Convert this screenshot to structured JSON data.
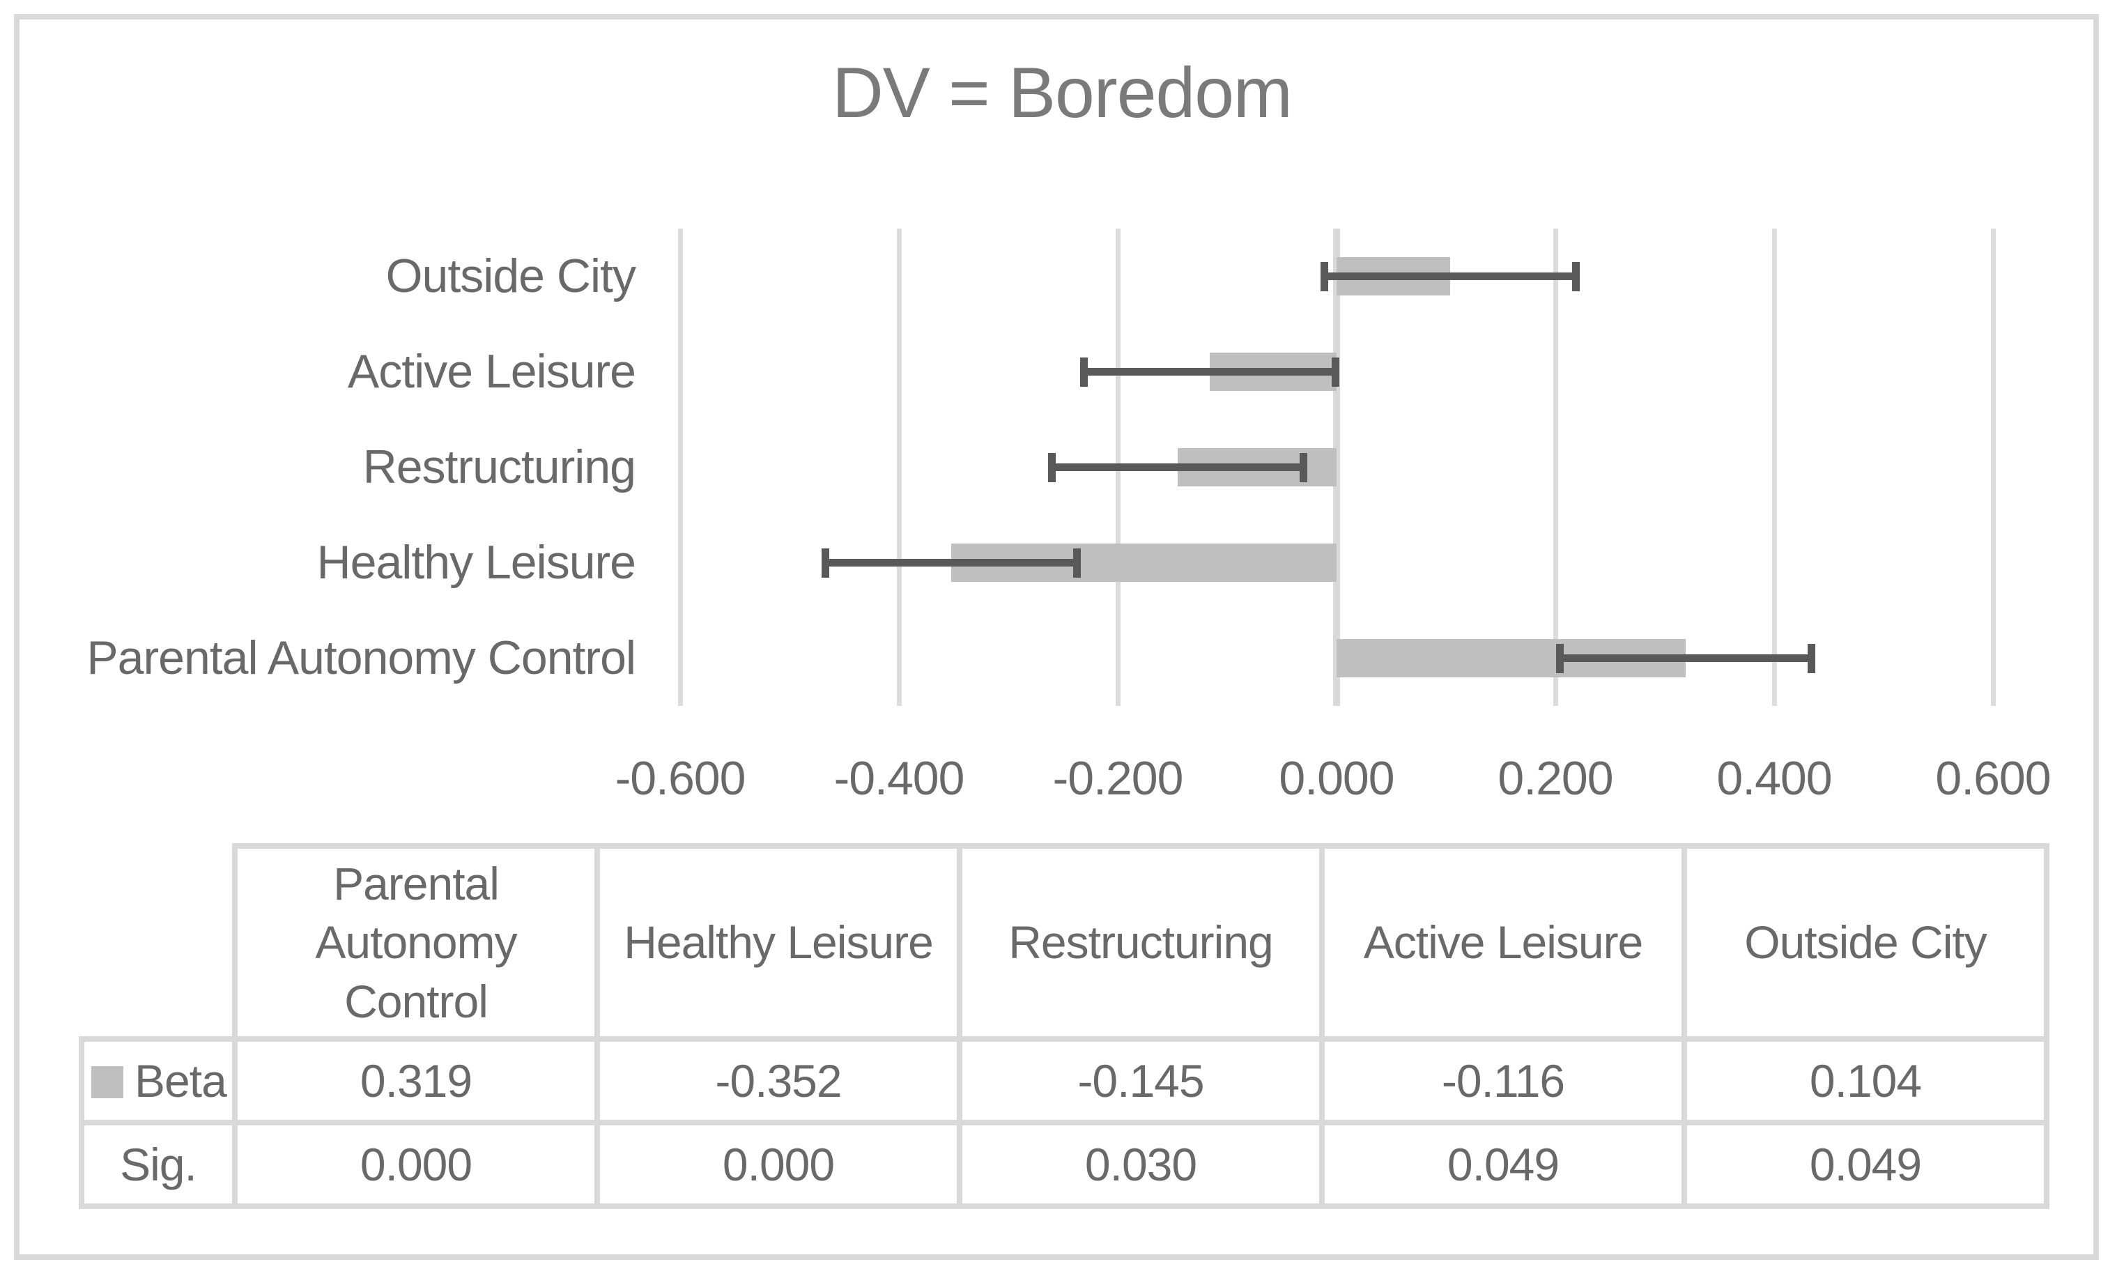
{
  "title": "DV = Boredom",
  "colors": {
    "bar_fill": "#bfbfbf",
    "error_bar": "#595959",
    "gridline": "#dcdcdc",
    "table_border": "#d9d9d9",
    "text": "#696969",
    "title_text": "#7a7a7a",
    "frame_border": "#d9d9d9",
    "background": "#ffffff"
  },
  "chart_data": {
    "type": "bar",
    "orientation": "horizontal",
    "title": "DV = Boredom",
    "categories_top_to_bottom": [
      "Outside City",
      "Active Leisure",
      "Restructuring",
      "Healthy Leisure",
      "Parental Autonomy Control"
    ],
    "series": [
      {
        "name": "Beta",
        "values_top_to_bottom": [
          0.104,
          -0.116,
          -0.145,
          -0.352,
          0.319
        ]
      }
    ],
    "error_bars": {
      "type": "symmetric",
      "half_width": 0.115
    },
    "x_ticks": [
      -0.6,
      -0.4,
      -0.2,
      0.0,
      0.2,
      0.4,
      0.6
    ],
    "x_tick_labels": [
      "-0.600",
      "-0.400",
      "-0.200",
      "0.000",
      "0.200",
      "0.400",
      "0.600"
    ],
    "xlim": [
      -0.7,
      0.7
    ],
    "gridlines": "vertical",
    "legend_position": "in-table-row-label"
  },
  "table": {
    "row_labels": [
      "Beta",
      "Sig."
    ],
    "columns": [
      "Parental Autonomy Control",
      "Healthy Leisure",
      "Restructuring",
      "Active Leisure",
      "Outside City"
    ],
    "beta_values": [
      "0.319",
      "-0.352",
      "-0.145",
      "-0.116",
      "0.104"
    ],
    "sig_values": [
      "0.000",
      "0.000",
      "0.030",
      "0.049",
      "0.049"
    ]
  }
}
